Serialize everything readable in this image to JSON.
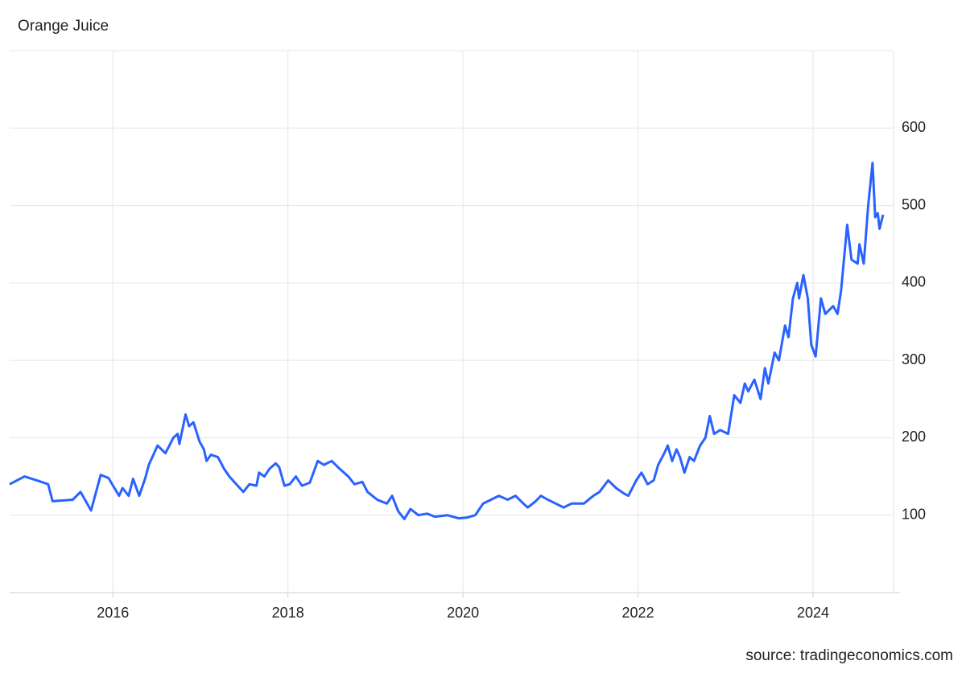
{
  "chart_data": {
    "type": "line",
    "title": "Orange Juice",
    "source": "source: tradingeconomics.com",
    "color": "#2962ff",
    "grid": true,
    "xlim": [
      2014.82,
      2024.92
    ],
    "xticks": [
      2016,
      2018,
      2020,
      2022,
      2024
    ],
    "ylim": [
      0,
      700
    ],
    "yticks": [
      100,
      200,
      300,
      400,
      500,
      600
    ],
    "x": [
      2014.82,
      2014.99,
      2015.13,
      2015.26,
      2015.31,
      2015.54,
      2015.63,
      2015.75,
      2015.86,
      2015.95,
      2016.07,
      2016.11,
      2016.18,
      2016.23,
      2016.3,
      2016.37,
      2016.41,
      2016.51,
      2016.6,
      2016.69,
      2016.74,
      2016.76,
      2016.83,
      2016.87,
      2016.92,
      2016.99,
      2017.04,
      2017.07,
      2017.12,
      2017.2,
      2017.27,
      2017.33,
      2017.41,
      2017.49,
      2017.56,
      2017.64,
      2017.67,
      2017.73,
      2017.79,
      2017.86,
      2017.9,
      2017.96,
      2018.02,
      2018.09,
      2018.16,
      2018.25,
      2018.34,
      2018.41,
      2018.5,
      2018.59,
      2018.69,
      2018.76,
      2018.85,
      2018.91,
      2019.02,
      2019.13,
      2019.19,
      2019.26,
      2019.33,
      2019.4,
      2019.49,
      2019.59,
      2019.68,
      2019.82,
      2019.95,
      2020.05,
      2020.14,
      2020.23,
      2020.32,
      2020.41,
      2020.51,
      2020.6,
      2020.69,
      2020.74,
      2020.83,
      2020.89,
      2020.97,
      2021.06,
      2021.15,
      2021.24,
      2021.38,
      2021.49,
      2021.56,
      2021.66,
      2021.75,
      2021.84,
      2021.89,
      2021.98,
      2022.04,
      2022.11,
      2022.18,
      2022.23,
      2022.3,
      2022.34,
      2022.39,
      2022.44,
      2022.48,
      2022.53,
      2022.59,
      2022.64,
      2022.71,
      2022.77,
      2022.82,
      2022.87,
      2022.94,
      2023.03,
      2023.1,
      2023.17,
      2023.22,
      2023.26,
      2023.33,
      2023.4,
      2023.45,
      2023.49,
      2023.56,
      2023.61,
      2023.68,
      2023.72,
      2023.77,
      2023.82,
      2023.84,
      2023.89,
      2023.94,
      2023.98,
      2024.03,
      2024.09,
      2024.14,
      2024.23,
      2024.28,
      2024.32,
      2024.39,
      2024.44,
      2024.51,
      2024.53,
      2024.58,
      2024.63,
      2024.68,
      2024.71,
      2024.74,
      2024.76,
      2024.8
    ],
    "values": [
      140,
      150,
      145,
      140,
      118,
      120,
      130,
      106,
      152,
      148,
      125,
      135,
      125,
      147,
      125,
      148,
      165,
      190,
      180,
      200,
      205,
      192,
      230,
      215,
      220,
      195,
      185,
      170,
      178,
      175,
      160,
      150,
      140,
      130,
      140,
      138,
      155,
      150,
      160,
      167,
      162,
      138,
      140,
      150,
      138,
      142,
      170,
      165,
      170,
      160,
      150,
      140,
      143,
      130,
      120,
      115,
      125,
      105,
      95,
      108,
      100,
      102,
      98,
      100,
      96,
      97,
      100,
      115,
      120,
      125,
      120,
      125,
      115,
      110,
      118,
      125,
      120,
      115,
      110,
      115,
      115,
      125,
      130,
      145,
      135,
      128,
      125,
      145,
      155,
      140,
      145,
      165,
      180,
      190,
      170,
      185,
      175,
      155,
      175,
      170,
      190,
      200,
      228,
      205,
      210,
      205,
      255,
      245,
      270,
      260,
      275,
      250,
      290,
      270,
      310,
      300,
      345,
      330,
      380,
      400,
      380,
      410,
      380,
      320,
      305,
      380,
      360,
      370,
      360,
      390,
      475,
      430,
      425,
      450,
      425,
      500,
      555,
      485,
      490,
      470,
      488
    ]
  }
}
